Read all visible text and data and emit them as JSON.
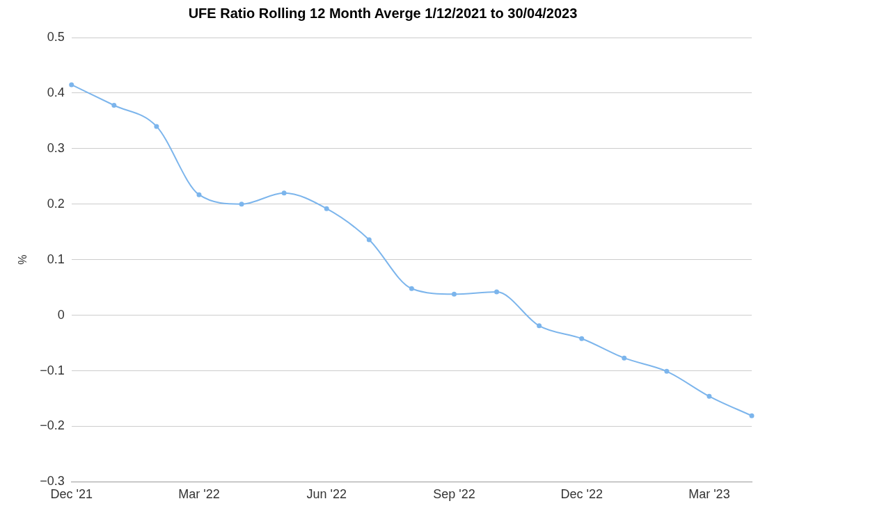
{
  "chart_data": {
    "type": "line",
    "title": "UFE Ratio Rolling 12 Month Averge 1/12/2021 to 30/04/2023",
    "ylabel": "%",
    "categories": [
      "Dec '21",
      null,
      null,
      "Mar '22",
      null,
      null,
      "Jun '22",
      null,
      null,
      "Sep '22",
      null,
      null,
      "Dec '22",
      null,
      null,
      "Mar '23",
      null
    ],
    "series": [
      {
        "color": "#7cb5ec",
        "values": [
          0.415,
          0.378,
          0.34,
          0.217,
          0.2,
          0.22,
          0.192,
          0.136,
          0.048,
          0.038,
          0.042,
          -0.019,
          -0.042,
          -0.077,
          -0.101,
          -0.146,
          -0.181
        ]
      }
    ],
    "ylim": [
      -0.3,
      0.5
    ],
    "yticks": [
      {
        "value": -0.3,
        "label": "−0.3"
      },
      {
        "value": -0.2,
        "label": "−0.2"
      },
      {
        "value": -0.1,
        "label": "−0.1"
      },
      0,
      0.1,
      0.2,
      0.3,
      0.4,
      0.5
    ],
    "grid": "y",
    "marker": "circle",
    "line_style": "solid",
    "legend": false
  }
}
